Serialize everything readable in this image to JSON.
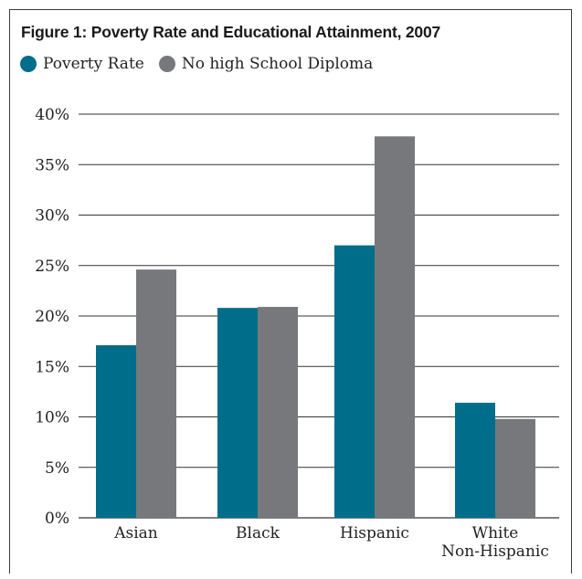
{
  "header": {
    "title": "Figure 1: Poverty Rate and Educational Attainment, 2007"
  },
  "colors": {
    "poverty": "#006d8a",
    "no_diploma": "#77787b",
    "grid": "#333333"
  },
  "chart_data": {
    "type": "bar",
    "title": "Figure 1: Poverty Rate and Educational Attainment, 2007",
    "xlabel": "",
    "ylabel": "",
    "categories": [
      "Asian",
      "Black",
      "Hispanic",
      "White Non-Hispanic"
    ],
    "category_lines": [
      [
        "Asian"
      ],
      [
        "Black"
      ],
      [
        "Hispanic"
      ],
      [
        "White",
        "Non-Hispanic"
      ]
    ],
    "series": [
      {
        "name": "Poverty Rate",
        "values": [
          17.1,
          20.8,
          27.0,
          11.4
        ]
      },
      {
        "name": "No high School Diploma",
        "values": [
          24.6,
          20.9,
          37.8,
          9.8
        ]
      }
    ],
    "ylim": [
      0,
      40
    ],
    "yticks": [
      0,
      5,
      10,
      15,
      20,
      25,
      30,
      35,
      40
    ],
    "ytick_labels": [
      "0%",
      "5%",
      "10%",
      "15%",
      "20%",
      "25%",
      "30%",
      "35%",
      "40%"
    ],
    "grid": true,
    "legend_position": "top-left"
  }
}
